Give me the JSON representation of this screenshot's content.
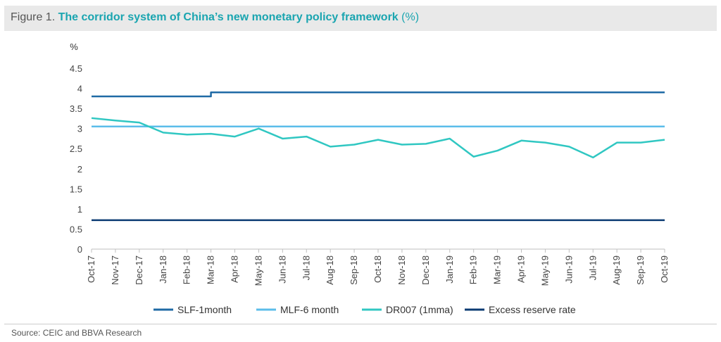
{
  "figure": {
    "label": "Figure 1.",
    "title": "The corridor system of China’s new monetary policy framework",
    "unit": "(%)"
  },
  "source": "Source: CEIC and BBVA Research",
  "chart_data": {
    "type": "line",
    "ylabel": "%",
    "ylim": [
      0,
      4.5
    ],
    "yticks": [
      "0",
      "0.5",
      "1",
      "1.5",
      "2",
      "2.5",
      "3",
      "3.5",
      "4",
      "4.5"
    ],
    "grid": false,
    "legend_position": "bottom",
    "categories": [
      "Oct-17",
      "Nov-17",
      "Dec-17",
      "Jan-18",
      "Feb-18",
      "Mar-18",
      "Apr-18",
      "May-18",
      "Jun-18",
      "Jul-18",
      "Aug-18",
      "Sep-18",
      "Oct-18",
      "Nov-18",
      "Dec-18",
      "Jan-19",
      "Feb-19",
      "Mar-19",
      "Apr-19",
      "May-19",
      "Jun-19",
      "Jul-19",
      "Aug-19",
      "Sep-19",
      "Oct-19"
    ],
    "series": [
      {
        "name": "SLF-1month",
        "color": "#1f6aa5",
        "values": [
          3.8,
          3.8,
          3.8,
          3.8,
          3.8,
          3.9,
          3.9,
          3.9,
          3.9,
          3.9,
          3.9,
          3.9,
          3.9,
          3.9,
          3.9,
          3.9,
          3.9,
          3.9,
          3.9,
          3.9,
          3.9,
          3.9,
          3.9,
          3.9,
          3.9
        ]
      },
      {
        "name": "MLF-6 month",
        "color": "#5bbdea",
        "values": [
          3.05,
          3.05,
          3.05,
          3.05,
          3.05,
          3.05,
          3.05,
          3.05,
          3.05,
          3.05,
          3.05,
          3.05,
          3.05,
          3.05,
          3.05,
          3.05,
          3.05,
          3.05,
          3.05,
          3.05,
          3.05,
          3.05,
          3.05,
          3.05,
          3.05
        ]
      },
      {
        "name": "DR007 (1mma)",
        "color": "#30c7c2",
        "values": [
          3.26,
          3.2,
          3.15,
          2.9,
          2.85,
          2.87,
          2.8,
          3.0,
          2.75,
          2.8,
          2.55,
          2.6,
          2.72,
          2.6,
          2.62,
          2.75,
          2.3,
          2.45,
          2.7,
          2.65,
          2.55,
          2.28,
          2.65,
          2.65,
          2.72
        ]
      },
      {
        "name": "Excess reserve rate",
        "color": "#0b3b73",
        "values": [
          0.72,
          0.72,
          0.72,
          0.72,
          0.72,
          0.72,
          0.72,
          0.72,
          0.72,
          0.72,
          0.72,
          0.72,
          0.72,
          0.72,
          0.72,
          0.72,
          0.72,
          0.72,
          0.72,
          0.72,
          0.72,
          0.72,
          0.72,
          0.72,
          0.72
        ]
      }
    ]
  }
}
